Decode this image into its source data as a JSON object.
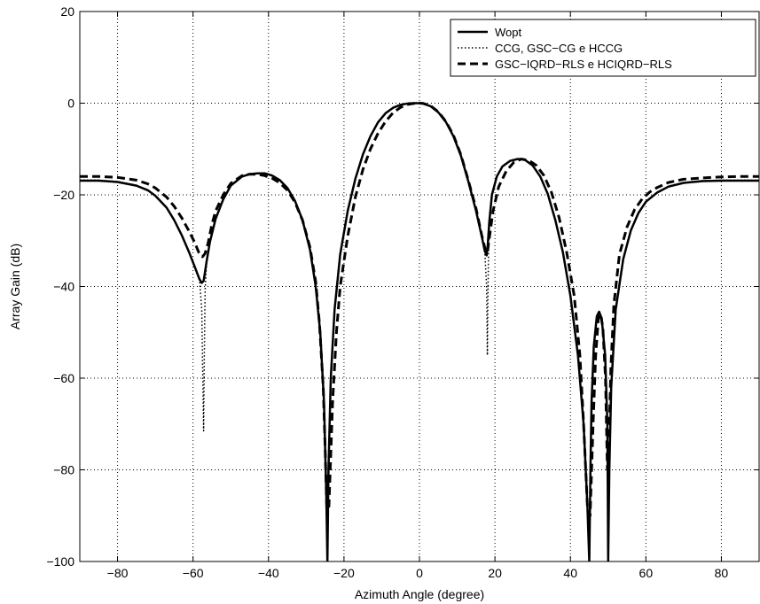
{
  "chart_data": {
    "type": "line",
    "title": "",
    "xlabel": "Azimuth Angle (degree)",
    "ylabel": "Array Gain (dB)",
    "xlim": [
      -90,
      90
    ],
    "ylim": [
      -100,
      20
    ],
    "xticks": [
      -80,
      -60,
      -40,
      -20,
      0,
      20,
      40,
      60,
      80
    ],
    "yticks": [
      20,
      0,
      -20,
      -40,
      -60,
      -80,
      -100
    ],
    "grid": true,
    "legend_position": "top-right",
    "series": [
      {
        "name": "Wopt",
        "style": "solid",
        "color": "#000000",
        "x": [
          -90,
          -85,
          -80,
          -75,
          -72,
          -70,
          -67,
          -65,
          -63,
          -61,
          -59.5,
          -58.3,
          -57.7,
          -57.2,
          -56.9,
          -56.4,
          -55.5,
          -54,
          -52,
          -50,
          -47,
          -45,
          -43,
          -41,
          -39,
          -37,
          -35,
          -33,
          -31,
          -29,
          -27.5,
          -26.3,
          -25.3,
          -24.7,
          -24.4,
          -24.1,
          -23.5,
          -22.5,
          -21,
          -19,
          -17,
          -15,
          -13,
          -11,
          -9,
          -7,
          -5,
          -3,
          -1,
          0,
          1,
          3,
          5,
          7,
          9,
          11,
          13,
          15,
          16.5,
          17.3,
          17.8,
          18.1,
          18.5,
          19.2,
          20.5,
          22,
          24,
          26,
          27,
          28,
          30,
          32,
          34,
          36,
          38,
          40,
          42,
          43.5,
          44.5,
          45,
          45.3,
          45.6,
          46.2,
          47,
          47.6,
          48.3,
          49.2,
          49.8,
          50,
          50.3,
          50.8,
          52,
          54,
          56,
          58,
          60,
          63,
          66,
          70,
          75,
          80,
          85,
          90
        ],
        "y": [
          -16.9,
          -16.9,
          -17.2,
          -18,
          -19,
          -20.2,
          -22.8,
          -25.5,
          -28.8,
          -32.6,
          -35.8,
          -38.4,
          -39.2,
          -38.8,
          -37.2,
          -34.5,
          -30.2,
          -25.2,
          -21,
          -18,
          -16,
          -15.5,
          -15.3,
          -15.3,
          -15.8,
          -16.8,
          -18.5,
          -21.3,
          -25.5,
          -32,
          -40,
          -50,
          -65,
          -85,
          -100,
          -80,
          -60,
          -45,
          -33,
          -23.5,
          -16.5,
          -11.2,
          -7.2,
          -4.2,
          -2.2,
          -1,
          -0.35,
          -0.05,
          0,
          0,
          -0.1,
          -0.7,
          -2,
          -4.1,
          -7.2,
          -11.5,
          -17.2,
          -23.5,
          -29,
          -32.2,
          -33.2,
          -31,
          -26,
          -20,
          -16,
          -13.8,
          -12.6,
          -12.2,
          -12.2,
          -12.4,
          -13.6,
          -16,
          -19.8,
          -25.5,
          -32.5,
          -42,
          -55,
          -70,
          -88,
          -100,
          -80,
          -65,
          -53,
          -46.5,
          -45.5,
          -47,
          -55,
          -70,
          -100,
          -80,
          -62,
          -45,
          -34,
          -27.8,
          -24,
          -21.5,
          -19.5,
          -18.2,
          -17.4,
          -17,
          -16.9,
          -16.9,
          -16.9
        ]
      },
      {
        "name": "CCG, GSC−CG e HCCG",
        "style": "dotted",
        "color": "#000000",
        "x": [
          -90,
          -85,
          -80,
          -75,
          -72,
          -70,
          -67,
          -65,
          -63,
          -61,
          -59.5,
          -58.3,
          -57.7,
          -57.4,
          -57.2,
          -57,
          -56.8,
          -56.4,
          -55.5,
          -54,
          -52,
          -50,
          -47,
          -45,
          -43,
          -41,
          -39,
          -37,
          -35,
          -33,
          -31,
          -29,
          -27.5,
          -26.3,
          -25.3,
          -24.7,
          -24.4,
          -24.1,
          -23.5,
          -22.5,
          -21,
          -19,
          -17,
          -15,
          -13,
          -11,
          -9,
          -7,
          -5,
          -3,
          -1,
          0,
          1,
          3,
          5,
          7,
          9,
          11,
          13,
          15,
          16.5,
          17.3,
          17.8,
          18,
          18.1,
          18.3,
          18.6,
          19.2,
          20.5,
          22,
          24,
          26,
          27,
          28,
          30,
          32,
          34,
          36,
          38,
          40,
          42,
          43.5,
          44.5,
          45,
          45.3,
          45.6,
          46.2,
          47,
          47.6,
          48.3,
          49.2,
          49.8,
          50,
          50.3,
          50.8,
          52,
          54,
          56,
          58,
          60,
          63,
          66,
          70,
          75,
          80,
          85,
          90
        ],
        "y": [
          -16.8,
          -16.8,
          -17.1,
          -17.9,
          -18.9,
          -20.1,
          -22.7,
          -25.4,
          -28.7,
          -32.5,
          -35.7,
          -38.3,
          -45,
          -60,
          -71.5,
          -55,
          -41,
          -34.5,
          -30.1,
          -25.1,
          -20.9,
          -17.9,
          -15.9,
          -15.4,
          -15.2,
          -15.2,
          -15.7,
          -16.7,
          -18.4,
          -21.2,
          -25.4,
          -31.9,
          -39.9,
          -50,
          -65,
          -85,
          -100,
          -80,
          -60,
          -45,
          -33,
          -23.5,
          -16.5,
          -11.2,
          -7.2,
          -4.2,
          -2.2,
          -1,
          -0.35,
          -0.05,
          0,
          0,
          -0.1,
          -0.7,
          -2,
          -4.1,
          -7.2,
          -11.5,
          -17.2,
          -23.5,
          -29,
          -32.2,
          -40,
          -55,
          -45,
          -32,
          -26,
          -20,
          -16,
          -13.7,
          -12.5,
          -12.1,
          -12.1,
          -12.3,
          -13.5,
          -15.9,
          -19.7,
          -25.4,
          -32.4,
          -42,
          -55,
          -70,
          -88,
          -100,
          -80,
          -65,
          -53,
          -46.5,
          -45.5,
          -47,
          -55,
          -70,
          -100,
          -80,
          -62,
          -45,
          -34,
          -27.7,
          -23.9,
          -21.4,
          -19.4,
          -18.1,
          -17.3,
          -16.9,
          -16.8,
          -16.8,
          -16.8
        ]
      },
      {
        "name": "GSC−IQRD−RLS e HCIQRD−RLS",
        "style": "dashed",
        "color": "#000000",
        "x": [
          -90,
          -85,
          -80,
          -75,
          -72,
          -70,
          -67,
          -65,
          -63,
          -61,
          -59.5,
          -58.5,
          -57.5,
          -56.8,
          -56,
          -55,
          -54,
          -52,
          -50,
          -47,
          -45,
          -43,
          -41,
          -39,
          -37,
          -35,
          -33,
          -31,
          -29,
          -27.5,
          -26.5,
          -25.5,
          -25,
          -24.5,
          -24,
          -23,
          -22,
          -21,
          -19,
          -17,
          -15,
          -13,
          -11,
          -9,
          -7,
          -5,
          -3,
          -1,
          0,
          1,
          3,
          5,
          7,
          9,
          11,
          13,
          15,
          16.5,
          17.5,
          18,
          18.5,
          19.5,
          21,
          23,
          25,
          27,
          29,
          31,
          33,
          35,
          37,
          39,
          41,
          42.5,
          43.5,
          44.5,
          45.2,
          46,
          46.7,
          47.4,
          48,
          48.6,
          49.3,
          49.8,
          50.2,
          50.7,
          51.5,
          53,
          55,
          57,
          59,
          61,
          63,
          66,
          70,
          75,
          80,
          85,
          90
        ],
        "y": [
          -16,
          -16,
          -16.2,
          -16.8,
          -17.6,
          -18.5,
          -20.5,
          -22.5,
          -25,
          -28,
          -30.5,
          -32.5,
          -33.5,
          -32.8,
          -30.5,
          -26.5,
          -23.5,
          -20,
          -17.5,
          -15.8,
          -15.5,
          -15.5,
          -15.8,
          -16.4,
          -17.4,
          -19,
          -21.6,
          -25.5,
          -31.5,
          -39,
          -48,
          -62,
          -75,
          -90,
          -88,
          -65,
          -50,
          -40,
          -29,
          -20.5,
          -14.5,
          -10,
          -6.6,
          -4,
          -2.1,
          -0.9,
          -0.25,
          0,
          0,
          -0.05,
          -0.6,
          -1.9,
          -4,
          -7,
          -11.3,
          -17,
          -23,
          -28.8,
          -32.2,
          -32.6,
          -29.5,
          -23.5,
          -18.2,
          -14.8,
          -12.9,
          -12.2,
          -12.5,
          -13.6,
          -15.8,
          -19.5,
          -25,
          -32.5,
          -42,
          -55,
          -70,
          -88,
          -90,
          -70,
          -55,
          -47,
          -46,
          -49,
          -60,
          -80,
          -75,
          -58,
          -44,
          -33,
          -27,
          -23.2,
          -20.9,
          -19.4,
          -18.4,
          -17.3,
          -16.6,
          -16.3,
          -16.1,
          -16,
          -16
        ]
      }
    ]
  }
}
